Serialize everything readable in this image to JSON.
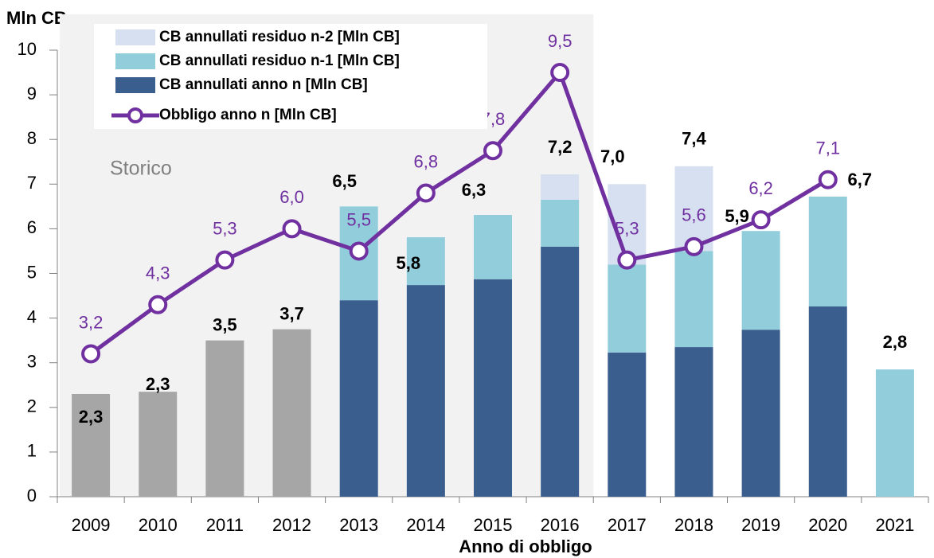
{
  "chart_data": {
    "type": "bar",
    "y_label": "Mln CB",
    "x_label": "Anno di obbligo",
    "annotation": "Storico",
    "categories": [
      "2009",
      "2010",
      "2011",
      "2012",
      "2013",
      "2014",
      "2015",
      "2016",
      "2017",
      "2018",
      "2019",
      "2020",
      "2021"
    ],
    "series": [
      {
        "color": "#a6a6a6",
        "values": [
          2.3,
          2.35,
          3.5,
          3.75,
          null,
          null,
          null,
          null,
          null,
          null,
          null,
          null,
          null
        ]
      },
      {
        "name": "CB annullati anno n [Mln CB]",
        "color": "#3a5f8f",
        "values": [
          null,
          null,
          null,
          null,
          4.4,
          4.74,
          4.87,
          5.6,
          3.23,
          3.35,
          3.74,
          4.26,
          null
        ]
      },
      {
        "name": "CB annullati residuo n-1 [Mln CB]",
        "color": "#92cddc",
        "values": [
          null,
          null,
          null,
          null,
          2.1,
          1.07,
          1.44,
          1.05,
          1.97,
          2.15,
          2.21,
          2.46,
          2.85
        ]
      },
      {
        "name": "CB annullati residuo n-2 [Mln CB]",
        "color": "#d6e0f0",
        "values": [
          null,
          null,
          null,
          null,
          null,
          null,
          null,
          0.57,
          1.8,
          1.9,
          null,
          null,
          null
        ]
      },
      {
        "name": "Obbligo anno n [Mln CB]",
        "type": "line",
        "color": "#7030a0",
        "values": [
          3.2,
          4.3,
          5.3,
          6.0,
          5.5,
          6.8,
          7.75,
          9.5,
          5.3,
          5.6,
          6.2,
          7.1,
          null
        ],
        "value_labels": [
          "3,2",
          "4,3",
          "5,3",
          "6,0",
          "5,5",
          "6,8",
          "7,8",
          "9,5",
          "5,3",
          "5,6",
          "6,2",
          "7,1",
          null
        ]
      }
    ],
    "total_labels": [
      "2,3",
      "2,3",
      "3,5",
      "3,7",
      "6,5",
      "5,8",
      "6,3",
      "7,2",
      "7,0",
      "7,4",
      "5,9",
      "6,7",
      "2,8"
    ],
    "ylim": [
      0,
      10
    ],
    "yticks": [
      0,
      1,
      2,
      3,
      4,
      5,
      6,
      7,
      8,
      9,
      10
    ]
  }
}
